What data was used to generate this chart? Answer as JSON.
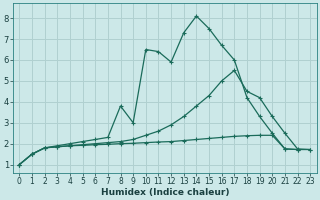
{
  "xlabel": "Humidex (Indice chaleur)",
  "background_color": "#cce8e8",
  "grid_color": "#b0d0d0",
  "line_color": "#1a6b5a",
  "xlim": [
    -0.5,
    23.5
  ],
  "ylim": [
    0.6,
    8.7
  ],
  "xticks": [
    0,
    1,
    2,
    3,
    4,
    5,
    6,
    7,
    8,
    9,
    10,
    11,
    12,
    13,
    14,
    15,
    16,
    17,
    18,
    19,
    20,
    21,
    22,
    23
  ],
  "yticks": [
    1,
    2,
    3,
    4,
    5,
    6,
    7,
    8
  ],
  "series": [
    {
      "x": [
        0,
        1,
        2,
        3,
        4,
        5,
        6,
        7,
        8,
        9,
        10,
        11,
        12,
        13,
        14,
        15,
        16,
        17,
        18,
        19,
        20,
        21,
        22,
        23
      ],
      "y": [
        1.0,
        1.5,
        1.8,
        1.85,
        1.9,
        1.92,
        1.95,
        1.97,
        2.0,
        2.02,
        2.05,
        2.08,
        2.1,
        2.15,
        2.2,
        2.25,
        2.3,
        2.35,
        2.38,
        2.4,
        2.4,
        1.75,
        1.72,
        1.72
      ]
    },
    {
      "x": [
        0,
        1,
        2,
        3,
        4,
        5,
        6,
        7,
        8,
        9,
        10,
        11,
        12,
        13,
        14,
        15,
        16,
        17,
        18,
        19,
        20,
        21,
        22,
        23
      ],
      "y": [
        1.0,
        1.5,
        1.8,
        1.85,
        1.9,
        1.95,
        2.0,
        2.05,
        2.1,
        2.2,
        2.4,
        2.6,
        2.9,
        3.3,
        3.8,
        4.3,
        5.0,
        5.5,
        4.5,
        4.2,
        3.3,
        2.5,
        1.75,
        1.72
      ]
    },
    {
      "x": [
        0,
        1,
        2,
        3,
        4,
        5,
        6,
        7,
        8,
        9,
        10,
        11,
        12,
        13,
        14,
        15,
        16,
        17,
        18,
        19,
        20,
        21,
        22
      ],
      "y": [
        1.0,
        1.5,
        1.8,
        1.9,
        2.0,
        2.1,
        2.2,
        2.3,
        3.8,
        3.0,
        6.5,
        6.4,
        5.9,
        7.3,
        8.1,
        7.5,
        6.7,
        6.0,
        4.2,
        3.3,
        2.5,
        1.75,
        1.72
      ]
    }
  ]
}
